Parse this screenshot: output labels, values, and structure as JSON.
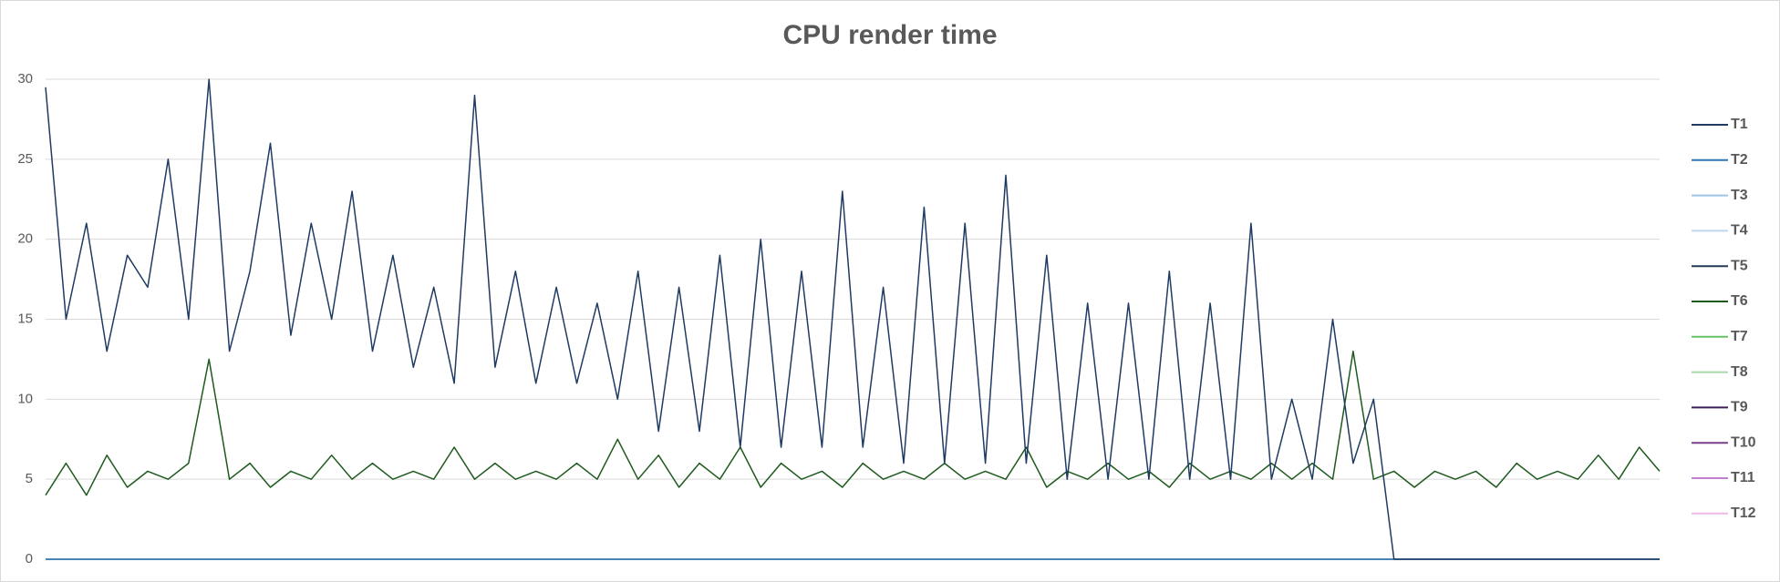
{
  "chart_data": {
    "type": "line",
    "title": "CPU render time",
    "ylim": [
      0,
      30
    ],
    "yticks": [
      0,
      5,
      10,
      15,
      20,
      25,
      30
    ],
    "grid": true,
    "legend": "right",
    "series": [
      {
        "name": "T1",
        "color": "#1f3b63",
        "values": [
          29.5,
          15,
          21,
          13,
          19,
          17,
          25,
          15,
          30,
          13,
          18,
          26,
          14,
          21,
          15,
          23,
          13,
          19,
          12,
          17,
          11,
          29,
          12,
          18,
          11,
          17,
          11,
          16,
          10,
          18,
          8,
          17,
          8,
          19,
          7,
          20,
          7,
          18,
          7,
          23,
          7,
          17,
          6,
          22,
          6,
          21,
          6,
          24,
          6,
          19,
          5,
          16,
          5,
          16,
          5,
          18,
          5,
          16,
          5,
          21,
          5,
          10,
          5,
          15,
          6,
          10,
          0,
          0,
          0,
          0,
          0,
          0,
          0,
          0,
          0,
          0,
          0,
          0,
          0,
          0
        ]
      },
      {
        "name": "T2",
        "color": "#2e75b6",
        "values": [
          0,
          0,
          0,
          0,
          0,
          0,
          0,
          0,
          0,
          0,
          0,
          0,
          0,
          0,
          0,
          0,
          0,
          0,
          0,
          0,
          0,
          0,
          0,
          0,
          0,
          0,
          0,
          0,
          0,
          0,
          0,
          0,
          0,
          0,
          0,
          0,
          0,
          0,
          0,
          0,
          0,
          0,
          0,
          0,
          0,
          0,
          0,
          0,
          0,
          0,
          0,
          0,
          0,
          0,
          0,
          0,
          0,
          0,
          0,
          0,
          0,
          0,
          0,
          0,
          0,
          0,
          0,
          0,
          0,
          0,
          0,
          0,
          0,
          0,
          0,
          0,
          0,
          0,
          0,
          0
        ]
      },
      {
        "name": "T3",
        "color": "#9dc3e6",
        "values": [
          0,
          0,
          0,
          0,
          0,
          0,
          0,
          0,
          0,
          0,
          0,
          0,
          0,
          0,
          0,
          0,
          0,
          0,
          0,
          0,
          0,
          0,
          0,
          0,
          0,
          0,
          0,
          0,
          0,
          0,
          0,
          0,
          0,
          0,
          0,
          0,
          0,
          0,
          0,
          0,
          0,
          0,
          0,
          0,
          0,
          0,
          0,
          0,
          0,
          0,
          0,
          0,
          0,
          0,
          0,
          0,
          0,
          0,
          0,
          0,
          0,
          0,
          0,
          0,
          0,
          0,
          0,
          0,
          0,
          0,
          0,
          0,
          0,
          0,
          0,
          0,
          0,
          0,
          0,
          0
        ]
      },
      {
        "name": "T4",
        "color": "#bdd7ee",
        "values": [
          0,
          0,
          0,
          0,
          0,
          0,
          0,
          0,
          0,
          0,
          0,
          0,
          0,
          0,
          0,
          0,
          0,
          0,
          0,
          0,
          0,
          0,
          0,
          0,
          0,
          0,
          0,
          0,
          0,
          0,
          0,
          0,
          0,
          0,
          0,
          0,
          0,
          0,
          0,
          0,
          0,
          0,
          0,
          0,
          0,
          0,
          0,
          0,
          0,
          0,
          0,
          0,
          0,
          0,
          0,
          0,
          0,
          0,
          0,
          0,
          0,
          0,
          0,
          0,
          0,
          0,
          0,
          0,
          0,
          0,
          0,
          0,
          0,
          0,
          0,
          0,
          0,
          0,
          0,
          0
        ]
      },
      {
        "name": "T5",
        "color": "#223a55",
        "values": [
          0,
          0,
          0,
          0,
          0,
          0,
          0,
          0,
          0,
          0,
          0,
          0,
          0,
          0,
          0,
          0,
          0,
          0,
          0,
          0,
          0,
          0,
          0,
          0,
          0,
          0,
          0,
          0,
          0,
          0,
          0,
          0,
          0,
          0,
          0,
          0,
          0,
          0,
          0,
          0,
          0,
          0,
          0,
          0,
          0,
          0,
          0,
          0,
          0,
          0,
          0,
          0,
          0,
          0,
          0,
          0,
          0,
          0,
          0,
          0,
          0,
          0,
          0,
          0,
          0,
          0,
          0,
          0,
          0,
          0,
          0,
          0,
          0,
          0,
          0,
          0,
          0,
          0,
          0,
          0
        ]
      },
      {
        "name": "T6",
        "color": "#1e5a1e",
        "values": [
          4,
          6,
          4,
          6.5,
          4.5,
          5.5,
          5,
          6,
          12.5,
          5,
          6,
          4.5,
          5.5,
          5,
          6.5,
          5,
          6,
          5,
          5.5,
          5,
          7,
          5,
          6,
          5,
          5.5,
          5,
          6,
          5,
          7.5,
          5,
          6.5,
          4.5,
          6,
          5,
          7,
          4.5,
          6,
          5,
          5.5,
          4.5,
          6,
          5,
          5.5,
          5,
          6,
          5,
          5.5,
          5,
          7,
          4.5,
          5.5,
          5,
          6,
          5,
          5.5,
          4.5,
          6,
          5,
          5.5,
          5,
          6,
          5,
          6,
          5,
          13,
          5,
          5.5,
          4.5,
          5.5,
          5,
          5.5,
          4.5,
          6,
          5,
          5.5,
          5,
          6.5,
          5,
          7,
          5.5
        ]
      },
      {
        "name": "T7",
        "color": "#66c266",
        "values": [
          0,
          0,
          0,
          0,
          0,
          0,
          0,
          0,
          0,
          0,
          0,
          0,
          0,
          0,
          0,
          0,
          0,
          0,
          0,
          0,
          0,
          0,
          0,
          0,
          0,
          0,
          0,
          0,
          0,
          0,
          0,
          0,
          0,
          0,
          0,
          0,
          0,
          0,
          0,
          0,
          0,
          0,
          0,
          0,
          0,
          0,
          0,
          0,
          0,
          0,
          0,
          0,
          0,
          0,
          0,
          0,
          0,
          0,
          0,
          0,
          0,
          0,
          0,
          0,
          0,
          0,
          0,
          0,
          0,
          0,
          0,
          0,
          0,
          0,
          0,
          0,
          0,
          0,
          0,
          0
        ]
      },
      {
        "name": "T8",
        "color": "#a9d8a9",
        "values": [
          0,
          0,
          0,
          0,
          0,
          0,
          0,
          0,
          0,
          0,
          0,
          0,
          0,
          0,
          0,
          0,
          0,
          0,
          0,
          0,
          0,
          0,
          0,
          0,
          0,
          0,
          0,
          0,
          0,
          0,
          0,
          0,
          0,
          0,
          0,
          0,
          0,
          0,
          0,
          0,
          0,
          0,
          0,
          0,
          0,
          0,
          0,
          0,
          0,
          0,
          0,
          0,
          0,
          0,
          0,
          0,
          0,
          0,
          0,
          0,
          0,
          0,
          0,
          0,
          0,
          0,
          0,
          0,
          0,
          0,
          0,
          0,
          0,
          0,
          0,
          0,
          0,
          0,
          0,
          0
        ]
      },
      {
        "name": "T9",
        "color": "#3c1f5c",
        "values": [
          0,
          0,
          0,
          0,
          0,
          0,
          0,
          0,
          0,
          0,
          0,
          0,
          0,
          0,
          0,
          0,
          0,
          0,
          0,
          0,
          0,
          0,
          0,
          0,
          0,
          0,
          0,
          0,
          0,
          0,
          0,
          0,
          0,
          0,
          0,
          0,
          0,
          0,
          0,
          0,
          0,
          0,
          0,
          0,
          0,
          0,
          0,
          0,
          0,
          0,
          0,
          0,
          0,
          0,
          0,
          0,
          0,
          0,
          0,
          0,
          0,
          0,
          0,
          0,
          0,
          0,
          0,
          0,
          0,
          0,
          0,
          0,
          0,
          0,
          0,
          0,
          0,
          0,
          0,
          0
        ]
      },
      {
        "name": "T10",
        "color": "#7b3f8c",
        "values": [
          0,
          0,
          0,
          0,
          0,
          0,
          0,
          0,
          0,
          0,
          0,
          0,
          0,
          0,
          0,
          0,
          0,
          0,
          0,
          0,
          0,
          0,
          0,
          0,
          0,
          0,
          0,
          0,
          0,
          0,
          0,
          0,
          0,
          0,
          0,
          0,
          0,
          0,
          0,
          0,
          0,
          0,
          0,
          0,
          0,
          0,
          0,
          0,
          0,
          0,
          0,
          0,
          0,
          0,
          0,
          0,
          0,
          0,
          0,
          0,
          0,
          0,
          0,
          0,
          0,
          0,
          0,
          0,
          0,
          0,
          0,
          0,
          0,
          0,
          0,
          0,
          0,
          0,
          0,
          0
        ]
      },
      {
        "name": "T11",
        "color": "#c080d0",
        "values": [
          0,
          0,
          0,
          0,
          0,
          0,
          0,
          0,
          0,
          0,
          0,
          0,
          0,
          0,
          0,
          0,
          0,
          0,
          0,
          0,
          0,
          0,
          0,
          0,
          0,
          0,
          0,
          0,
          0,
          0,
          0,
          0,
          0,
          0,
          0,
          0,
          0,
          0,
          0,
          0,
          0,
          0,
          0,
          0,
          0,
          0,
          0,
          0,
          0,
          0,
          0,
          0,
          0,
          0,
          0,
          0,
          0,
          0,
          0,
          0,
          0,
          0,
          0,
          0,
          0,
          0,
          0,
          0,
          0,
          0,
          0,
          0,
          0,
          0,
          0,
          0,
          0,
          0,
          0,
          0
        ]
      },
      {
        "name": "T12",
        "color": "#f0b8e8",
        "values": [
          0,
          0,
          0,
          0,
          0,
          0,
          0,
          0,
          0,
          0,
          0,
          0,
          0,
          0,
          0,
          0,
          0,
          0,
          0,
          0,
          0,
          0,
          0,
          0,
          0,
          0,
          0,
          0,
          0,
          0,
          0,
          0,
          0,
          0,
          0,
          0,
          0,
          0,
          0,
          0,
          0,
          0,
          0,
          0,
          0,
          0,
          0,
          0,
          0,
          0,
          0,
          0,
          0,
          0,
          0,
          0,
          0,
          0,
          0,
          0,
          0,
          0,
          0,
          0,
          0,
          0,
          0,
          0,
          0,
          0,
          0,
          0,
          0,
          0,
          0,
          0,
          0,
          0,
          0,
          0
        ]
      }
    ]
  }
}
